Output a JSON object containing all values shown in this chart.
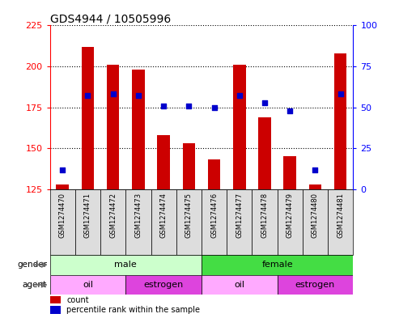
{
  "title": "GDS4944 / 10505996",
  "samples": [
    "GSM1274470",
    "GSM1274471",
    "GSM1274472",
    "GSM1274473",
    "GSM1274474",
    "GSM1274475",
    "GSM1274476",
    "GSM1274477",
    "GSM1274478",
    "GSM1274479",
    "GSM1274480",
    "GSM1274481"
  ],
  "counts": [
    128,
    212,
    201,
    198,
    158,
    153,
    143,
    201,
    169,
    145,
    128,
    208
  ],
  "percentiles": [
    12,
    57,
    58,
    57,
    51,
    51,
    50,
    57,
    53,
    48,
    12,
    58
  ],
  "ylim_left": [
    125,
    225
  ],
  "ylim_right": [
    0,
    100
  ],
  "yticks_left": [
    125,
    150,
    175,
    200,
    225
  ],
  "yticks_right": [
    0,
    25,
    50,
    75,
    100
  ],
  "bar_color": "#cc0000",
  "dot_color": "#0000cc",
  "bar_width": 0.5,
  "gender_color_male_light": "#ccffcc",
  "gender_color_female_dark": "#44dd44",
  "agent_color_oil": "#ffaaff",
  "agent_color_estrogen": "#dd44dd",
  "xlabel_bg_color": "#dddddd",
  "legend_count_label": "count",
  "legend_percentile_label": "percentile rank within the sample",
  "background_color": "#ffffff"
}
